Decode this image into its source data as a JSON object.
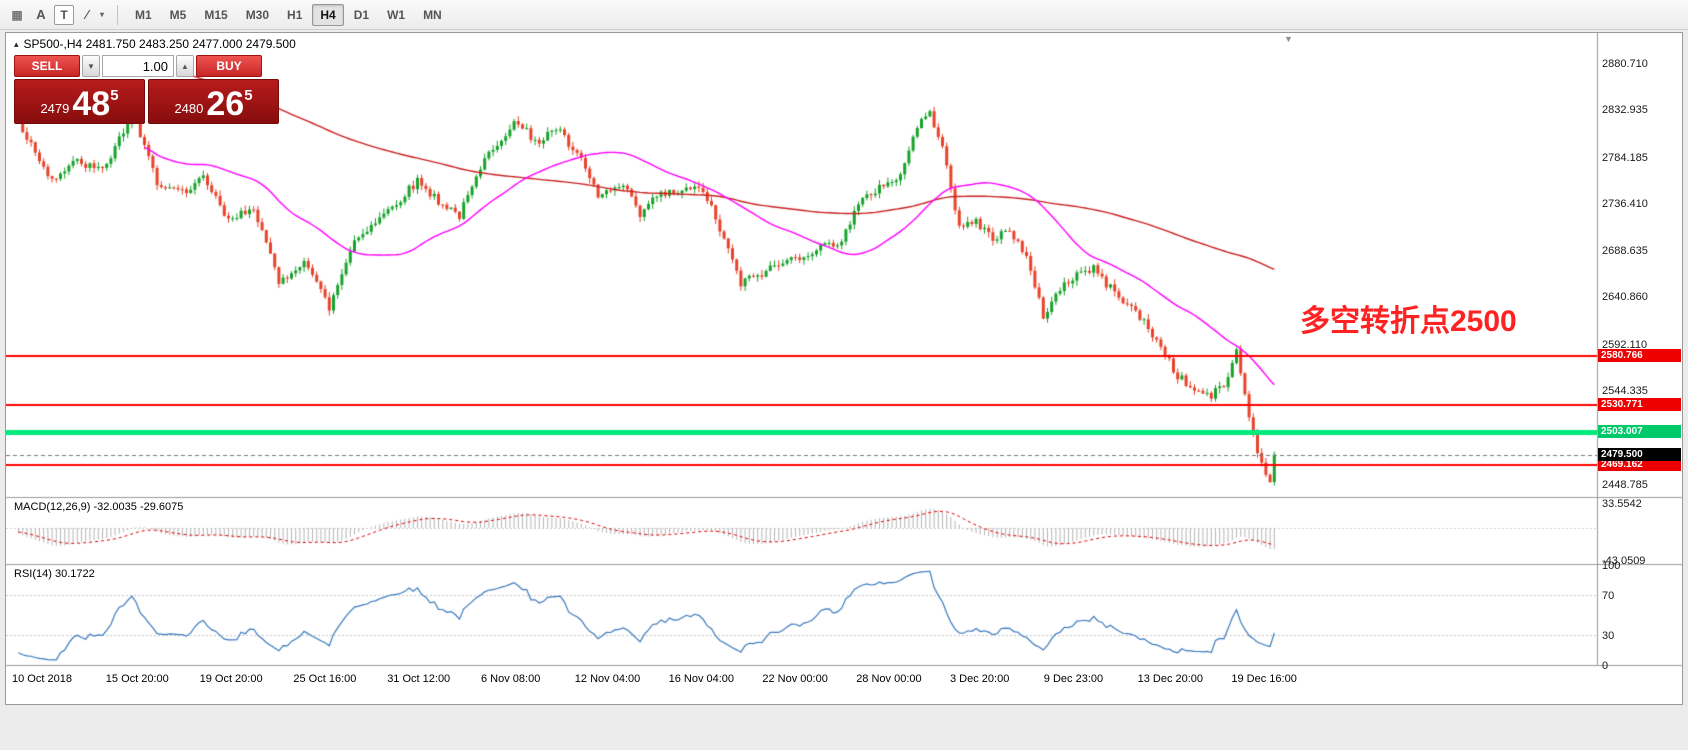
{
  "toolbar": {
    "tools": [
      {
        "name": "grid-icon",
        "glyph": "▦"
      },
      {
        "name": "arrow-tool-icon",
        "glyph": "A"
      },
      {
        "name": "text-tool-icon",
        "glyph": "T"
      },
      {
        "name": "shapes-tool-icon",
        "glyph": "∕"
      },
      {
        "name": "shapes-dropdown-caret-icon",
        "glyph": "▾"
      }
    ],
    "timeframes": [
      "M1",
      "M5",
      "M15",
      "M30",
      "H1",
      "H4",
      "D1",
      "W1",
      "MN"
    ],
    "active_timeframe": "H4"
  },
  "chart": {
    "symbol_icon_glyph": "▴",
    "symbol_line": "SP500-,H4 2481.750 2483.250 2477.000 2479.500",
    "annotation": "多空转折点2500",
    "annotation_color": "#ff2222",
    "shift_marker_glyph": "▼"
  },
  "trade_panel": {
    "sell_label": "SELL",
    "buy_label": "BUY",
    "volume": "1.00",
    "volume_down_glyph": "▼",
    "volume_up_glyph": "▲",
    "sell_price_prefix": "2479",
    "sell_price_main": "48",
    "sell_price_sup": "5",
    "buy_price_prefix": "2480",
    "buy_price_main": "26",
    "buy_price_sup": "5"
  },
  "indicators": {
    "macd_label": "MACD(12,26,9) -32.0035 -29.6075",
    "rsi_label": "RSI(14) 30.1722"
  },
  "chart_data": {
    "type": "candlestick",
    "symbol": "SP500-",
    "timeframe": "H4",
    "ohlc_display": {
      "open": "2481.750",
      "high": "2483.250",
      "low": "2477.000",
      "close": "2479.500"
    },
    "price_axis_ticks": [
      "2880.710",
      "2832.935",
      "2784.185",
      "2736.410",
      "2688.635",
      "2640.860",
      "2592.110",
      "2544.335",
      "2448.785"
    ],
    "price_range_top": 2912,
    "price_range_bottom": 2436,
    "h_lines": [
      {
        "price": 2580.766,
        "label": "2580.766",
        "color": "#ff0000",
        "thickness": 2,
        "tag_bg": "#ee0000"
      },
      {
        "price": 2530.771,
        "label": "2530.771",
        "color": "#ff0000",
        "thickness": 2,
        "tag_bg": "#ee0000"
      },
      {
        "price": 2503.007,
        "label": "2503.007",
        "color": "#00e97b",
        "thickness": 5,
        "tag_bg": "#00c96a"
      },
      {
        "price": 2469.162,
        "label": "2469.162",
        "color": "#ff0000",
        "thickness": 2,
        "tag_bg": "#ee0000"
      }
    ],
    "bid_line": {
      "price": 2479.5,
      "label": "2479.500",
      "tag_bg": "#000000"
    },
    "time_labels": [
      "10 Oct 2018",
      "15 Oct 20:00",
      "19 Oct 20:00",
      "25 Oct 16:00",
      "31 Oct 12:00",
      "6 Nov 08:00",
      "12 Nov 04:00",
      "16 Nov 04:00",
      "22 Nov 00:00",
      "28 Nov 00:00",
      "3 Dec 20:00",
      "9 Dec 23:00",
      "13 Dec 20:00",
      "19 Dec 16:00"
    ],
    "bars_visible": 300,
    "last_close": 2479.5,
    "waypoints": [
      [
        0,
        2820
      ],
      [
        8,
        2762
      ],
      [
        14,
        2780
      ],
      [
        20,
        2770
      ],
      [
        27,
        2828
      ],
      [
        33,
        2760
      ],
      [
        40,
        2745
      ],
      [
        44,
        2765
      ],
      [
        50,
        2718
      ],
      [
        56,
        2735
      ],
      [
        62,
        2655
      ],
      [
        68,
        2680
      ],
      [
        74,
        2630
      ],
      [
        80,
        2700
      ],
      [
        88,
        2730
      ],
      [
        95,
        2760
      ],
      [
        100,
        2740
      ],
      [
        105,
        2725
      ],
      [
        112,
        2790
      ],
      [
        118,
        2820
      ],
      [
        124,
        2800
      ],
      [
        128,
        2815
      ],
      [
        134,
        2780
      ],
      [
        138,
        2745
      ],
      [
        144,
        2755
      ],
      [
        148,
        2725
      ],
      [
        152,
        2745
      ],
      [
        158,
        2750
      ],
      [
        163,
        2752
      ],
      [
        168,
        2700
      ],
      [
        172,
        2655
      ],
      [
        178,
        2668
      ],
      [
        184,
        2680
      ],
      [
        190,
        2690
      ],
      [
        196,
        2700
      ],
      [
        200,
        2735
      ],
      [
        205,
        2755
      ],
      [
        210,
        2765
      ],
      [
        214,
        2818
      ],
      [
        217,
        2828
      ],
      [
        220,
        2800
      ],
      [
        224,
        2710
      ],
      [
        228,
        2720
      ],
      [
        232,
        2700
      ],
      [
        236,
        2712
      ],
      [
        240,
        2680
      ],
      [
        244,
        2622
      ],
      [
        248,
        2650
      ],
      [
        252,
        2665
      ],
      [
        256,
        2670
      ],
      [
        260,
        2650
      ],
      [
        264,
        2635
      ],
      [
        268,
        2615
      ],
      [
        272,
        2590
      ],
      [
        276,
        2560
      ],
      [
        280,
        2545
      ],
      [
        284,
        2540
      ],
      [
        287,
        2550
      ],
      [
        290,
        2585
      ],
      [
        293,
        2520
      ],
      [
        296,
        2468
      ],
      [
        298,
        2452
      ],
      [
        299,
        2479.5
      ]
    ],
    "up_color": "#18a32c",
    "down_color": "#e8432a",
    "ma_fast": {
      "period": 34,
      "color": "#ff00ff"
    },
    "ma_slow": {
      "period": 144,
      "color": "#cc2222"
    },
    "macd": {
      "params": "12,26,9",
      "value_1": "-32.0035",
      "value_2": "-29.6075",
      "axis": [
        "33.5542",
        "-43.0509"
      ],
      "hist_color": "#b6b6b6",
      "signal_color": "#e00000"
    },
    "rsi": {
      "period": 14,
      "value": "30.1722",
      "axis": [
        "100",
        "70",
        "30",
        "0"
      ],
      "levels": [
        70,
        30
      ],
      "color": "#3a7abd"
    }
  }
}
